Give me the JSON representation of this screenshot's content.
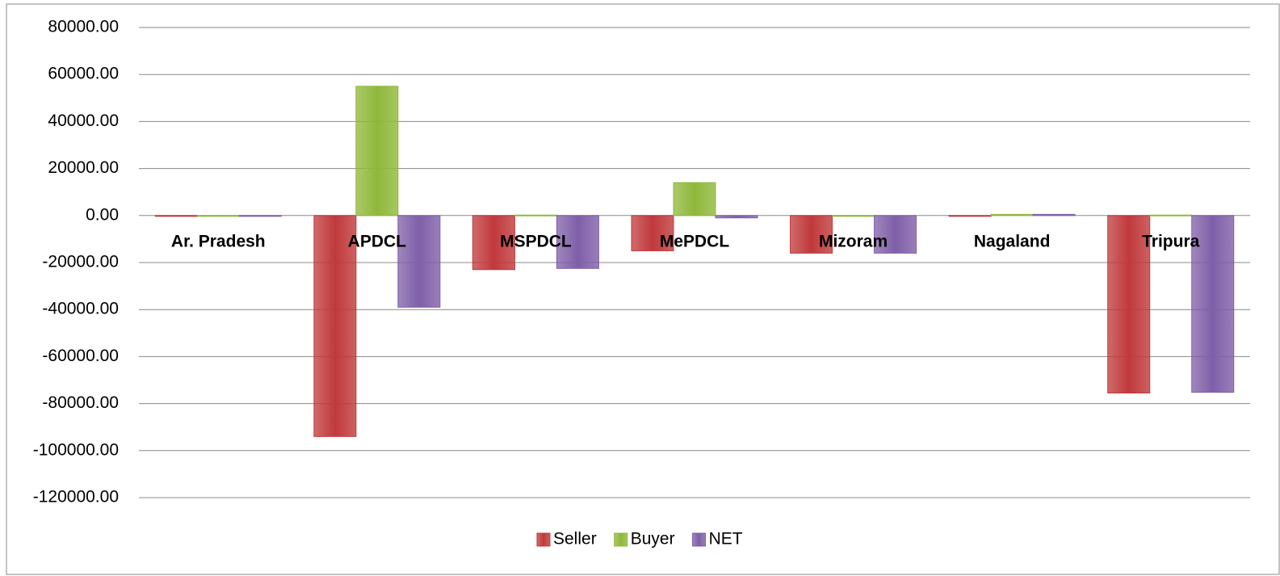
{
  "chart_data": {
    "type": "bar",
    "categories": [
      "Ar. Pradesh",
      "APDCL",
      "MSPDCL",
      "MePDCL",
      "Mizoram",
      "Nagaland",
      "Tripura"
    ],
    "series": [
      {
        "name": "Seller",
        "color": "#c0393b",
        "values": [
          0,
          -94000,
          -23000,
          -15000,
          -16000,
          0,
          -75500
        ]
      },
      {
        "name": "Buyer",
        "color": "#8fb83a",
        "values": [
          0,
          55000,
          200,
          14000,
          0,
          500,
          200
        ]
      },
      {
        "name": "NET",
        "color": "#7f5fa8",
        "values": [
          0,
          -39000,
          -22500,
          -1000,
          -16000,
          500,
          -75200
        ]
      }
    ],
    "ylim": [
      -120000,
      80000
    ],
    "yticks": [
      {
        "value": -120000,
        "label": "-120000.00"
      },
      {
        "value": -100000,
        "label": "-100000.00"
      },
      {
        "value": -80000,
        "label": "-80000.00"
      },
      {
        "value": -60000,
        "label": "-60000.00"
      },
      {
        "value": -40000,
        "label": "-40000.00"
      },
      {
        "value": -20000,
        "label": "-20000.00"
      },
      {
        "value": 0,
        "label": "0.00"
      },
      {
        "value": 20000,
        "label": "20000.00"
      },
      {
        "value": 40000,
        "label": "40000.00"
      },
      {
        "value": 60000,
        "label": "60000.00"
      },
      {
        "value": 80000,
        "label": "80000.00"
      }
    ],
    "grid": true,
    "legend": "bottom"
  }
}
